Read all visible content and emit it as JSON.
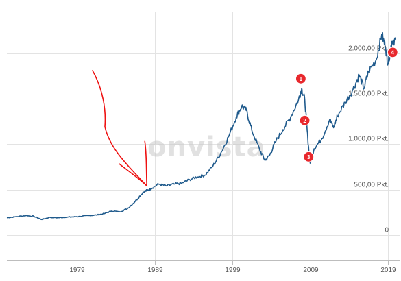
{
  "chart_data": {
    "type": "line",
    "title": "",
    "xlabel": "",
    "ylabel": "",
    "x_ticks": [
      "1979",
      "1989",
      "1999",
      "2009",
      "2019"
    ],
    "y_ticks": [
      {
        "value": 0,
        "label": "0"
      },
      {
        "value": 500,
        "label": "500,00 Pkt."
      },
      {
        "value": 1000,
        "label": "1.000,00 Pkt."
      },
      {
        "value": 1500,
        "label": "1.500,00 Pkt."
      },
      {
        "value": 2000,
        "label": "2.000,00 Pkt."
      }
    ],
    "xlim": [
      1970,
      2020.5
    ],
    "ylim": [
      -280,
      2450
    ],
    "grid": true,
    "series": [
      {
        "color": "#1f5a8c",
        "points": [
          [
            1970.0,
            190
          ],
          [
            1971.0,
            200
          ],
          [
            1972.5,
            215
          ],
          [
            1973.5,
            205
          ],
          [
            1974.5,
            170
          ],
          [
            1975.5,
            195
          ],
          [
            1976.5,
            190
          ],
          [
            1977.5,
            195
          ],
          [
            1978.5,
            200
          ],
          [
            1979.5,
            205
          ],
          [
            1980.5,
            215
          ],
          [
            1981.5,
            220
          ],
          [
            1982.5,
            235
          ],
          [
            1983.5,
            265
          ],
          [
            1984.5,
            255
          ],
          [
            1985.5,
            290
          ],
          [
            1986.5,
            370
          ],
          [
            1987.5,
            470
          ],
          [
            1988.0,
            490
          ],
          [
            1988.5,
            510
          ],
          [
            1989.5,
            560
          ],
          [
            1990.5,
            540
          ],
          [
            1991.5,
            560
          ],
          [
            1992.5,
            570
          ],
          [
            1993.5,
            610
          ],
          [
            1994.5,
            640
          ],
          [
            1995.5,
            660
          ],
          [
            1996.5,
            760
          ],
          [
            1997.5,
            900
          ],
          [
            1998.5,
            1080
          ],
          [
            1999.5,
            1300
          ],
          [
            2000.2,
            1420
          ],
          [
            2000.8,
            1370
          ],
          [
            2001.5,
            1150
          ],
          [
            2002.5,
            940
          ],
          [
            2003.2,
            820
          ],
          [
            2003.8,
            880
          ],
          [
            2004.5,
            1020
          ],
          [
            2005.5,
            1160
          ],
          [
            2006.5,
            1300
          ],
          [
            2007.5,
            1490
          ],
          [
            2007.9,
            1610
          ],
          [
            2008.3,
            1490
          ],
          [
            2008.7,
            1050
          ],
          [
            2009.0,
            790
          ],
          [
            2009.5,
            950
          ],
          [
            2010.5,
            1060
          ],
          [
            2011.5,
            1270
          ],
          [
            2012.0,
            1180
          ],
          [
            2012.5,
            1310
          ],
          [
            2013.5,
            1460
          ],
          [
            2014.5,
            1600
          ],
          [
            2015.3,
            1760
          ],
          [
            2015.9,
            1610
          ],
          [
            2016.5,
            1800
          ],
          [
            2017.5,
            1930
          ],
          [
            2018.2,
            2210
          ],
          [
            2018.7,
            2060
          ],
          [
            2019.0,
            1880
          ],
          [
            2019.5,
            2130
          ],
          [
            2020.0,
            2150
          ]
        ]
      }
    ],
    "markers": [
      {
        "label": "1",
        "x": 2007.8,
        "y": 1720
      },
      {
        "label": "2",
        "x": 2008.3,
        "y": 1260
      },
      {
        "label": "3",
        "x": 2008.8,
        "y": 860
      },
      {
        "label": "4",
        "x": 2019.6,
        "y": 2010
      }
    ],
    "annotation": {
      "kind": "hand-drawn red arrow",
      "color": "#ee1111",
      "points_to_x": 1988.0
    }
  },
  "watermark": "onvista",
  "colors": {
    "line": "#1f5a8c",
    "marker": "#e8282d",
    "grid": "#e3e3e3",
    "arrow": "#ee1111"
  }
}
